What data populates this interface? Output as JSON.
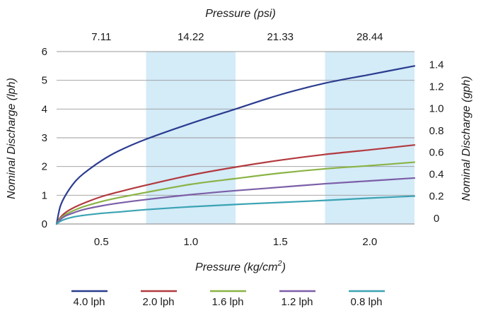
{
  "chart_data": {
    "type": "line",
    "x_bottom_title": "Pressure (kg/cm²)",
    "x_bottom_title_main": "Pressure (kg/cm",
    "x_bottom_title_sup": "2",
    "x_bottom_title_close": ")",
    "x_top_title": "Pressure (psi)",
    "y_left_title": "Nominal Discharge (lph)",
    "y_right_title": "Nominal Discharge (gph)",
    "xlim": [
      0.25,
      2.25
    ],
    "ylim": [
      0,
      6
    ],
    "x_bottom_ticks": [
      0.5,
      1.0,
      1.5,
      2.0
    ],
    "x_bottom_tick_labels": [
      "0.5",
      "1.0",
      "1.5",
      "2.0"
    ],
    "x_top_ticks": [
      0.5,
      1.0,
      1.5,
      2.0
    ],
    "x_top_tick_labels": [
      "7.11",
      "14.22",
      "21.33",
      "28.44"
    ],
    "y_left_ticks": [
      0,
      1,
      2,
      3,
      4,
      5,
      6
    ],
    "y_left_tick_labels": [
      "0",
      "1",
      "2",
      "3",
      "4",
      "5",
      "6"
    ],
    "y_right_ticks": [
      0.2,
      0.97,
      1.73,
      2.49,
      3.25,
      4.02,
      4.78,
      5.54
    ],
    "y_right_tick_labels": [
      "0",
      "0.2",
      "0.4",
      "0.6",
      "0.8",
      "1.0",
      "1.2",
      "1.4"
    ],
    "shaded_bands": [
      [
        0.75,
        1.25
      ],
      [
        1.75,
        2.25
      ]
    ],
    "band_color": "#d4ebf8",
    "grid": "horizontal",
    "grid_color": "#9a9a9a",
    "legend_position": "bottom",
    "series": [
      {
        "name": "4.0 lph",
        "color": "#2a3c8f",
        "x": [
          0.25,
          0.27,
          0.3,
          0.35,
          0.4,
          0.5,
          0.6,
          0.75,
          1.0,
          1.25,
          1.5,
          1.75,
          2.0,
          2.25
        ],
        "y": [
          0,
          0.6,
          1.0,
          1.45,
          1.75,
          2.2,
          2.55,
          2.95,
          3.5,
          4.0,
          4.5,
          4.9,
          5.2,
          5.5
        ]
      },
      {
        "name": "2.0 lph",
        "color": "#b23a3f",
        "x": [
          0.25,
          0.27,
          0.3,
          0.35,
          0.4,
          0.5,
          0.6,
          0.75,
          1.0,
          1.25,
          1.5,
          1.75,
          2.0,
          2.25
        ],
        "y": [
          0,
          0.22,
          0.4,
          0.58,
          0.72,
          0.95,
          1.12,
          1.35,
          1.7,
          1.98,
          2.22,
          2.42,
          2.58,
          2.75
        ]
      },
      {
        "name": "1.6 lph",
        "color": "#8ab345",
        "x": [
          0.25,
          0.27,
          0.3,
          0.35,
          0.4,
          0.5,
          0.6,
          0.75,
          1.0,
          1.25,
          1.5,
          1.75,
          2.0,
          2.25
        ],
        "y": [
          0,
          0.18,
          0.33,
          0.48,
          0.6,
          0.78,
          0.92,
          1.1,
          1.38,
          1.58,
          1.77,
          1.92,
          2.03,
          2.15
        ]
      },
      {
        "name": "1.2 lph",
        "color": "#7b5ea7",
        "x": [
          0.25,
          0.27,
          0.3,
          0.35,
          0.4,
          0.5,
          0.6,
          0.75,
          1.0,
          1.25,
          1.5,
          1.75,
          2.0,
          2.25
        ],
        "y": [
          0,
          0.15,
          0.28,
          0.4,
          0.5,
          0.63,
          0.73,
          0.85,
          1.02,
          1.16,
          1.28,
          1.4,
          1.5,
          1.6
        ]
      },
      {
        "name": "0.8 lph",
        "color": "#3aa3b3",
        "x": [
          0.25,
          0.27,
          0.3,
          0.35,
          0.4,
          0.5,
          0.6,
          0.75,
          1.0,
          1.25,
          1.5,
          1.75,
          2.0,
          2.25
        ],
        "y": [
          0,
          0.09,
          0.17,
          0.25,
          0.3,
          0.37,
          0.42,
          0.5,
          0.6,
          0.68,
          0.75,
          0.82,
          0.9,
          0.97
        ]
      }
    ]
  }
}
